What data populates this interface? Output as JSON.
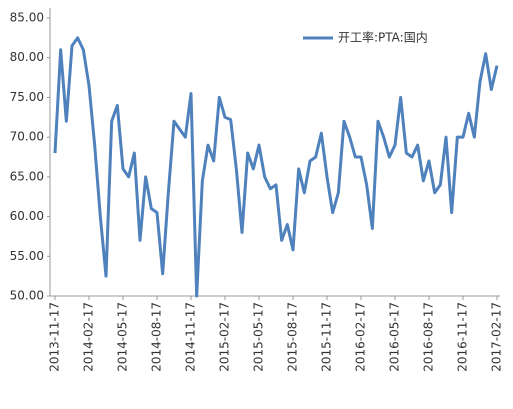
{
  "chart_data": {
    "type": "line",
    "categories": [
      "2013-11-17",
      null,
      null,
      null,
      null,
      null,
      "2014-02-17",
      null,
      null,
      null,
      null,
      null,
      "2014-05-17",
      null,
      null,
      null,
      null,
      null,
      "2014-08-17",
      null,
      null,
      null,
      null,
      null,
      "2014-11-17",
      null,
      null,
      null,
      null,
      null,
      "2015-02-17",
      null,
      null,
      null,
      null,
      null,
      "2015-05-17",
      null,
      null,
      null,
      null,
      null,
      "2015-08-17",
      null,
      null,
      null,
      null,
      null,
      "2015-11-17",
      null,
      null,
      null,
      null,
      null,
      "2016-02-17",
      null,
      null,
      null,
      null,
      null,
      "2016-05-17",
      null,
      null,
      null,
      null,
      null,
      "2016-08-17",
      null,
      null,
      null,
      null,
      null,
      "2016-11-17",
      null,
      null,
      null,
      null,
      null,
      "2017-02-17"
    ],
    "series": [
      {
        "name": "开工率:PTA:国内",
        "color": "#4f81bd",
        "values": [
          68,
          81,
          72,
          81.5,
          82.5,
          81,
          76.5,
          69,
          60,
          52.5,
          72,
          74,
          66,
          65,
          68,
          57,
          65,
          61,
          60.5,
          52.8,
          63,
          72,
          71,
          70,
          75.5,
          50,
          64.5,
          69,
          67,
          75,
          72.5,
          72.2,
          66,
          58,
          68,
          66,
          69,
          65,
          63.5,
          64,
          57,
          59,
          55.8,
          66,
          63,
          67,
          67.5,
          70.5,
          65,
          60.5,
          63,
          72,
          70,
          67.5,
          67.5,
          64,
          58.5,
          72,
          70,
          67.5,
          69,
          75,
          68,
          67.5,
          69,
          64.5,
          67,
          63,
          64,
          70,
          60.5,
          70,
          70,
          73,
          70,
          77,
          80.5,
          76,
          79
        ]
      }
    ],
    "ylim": [
      50,
      85
    ],
    "yticks": [
      {
        "value": 50,
        "label": "50.00"
      },
      {
        "value": 55,
        "label": "55.00"
      },
      {
        "value": 60,
        "label": "60.00"
      },
      {
        "value": 65,
        "label": "65.00"
      },
      {
        "value": 70,
        "label": "70.00"
      },
      {
        "value": 75,
        "label": "75.00"
      },
      {
        "value": 80,
        "label": "80.00"
      },
      {
        "value": 85,
        "label": "85.00"
      }
    ],
    "grid": false,
    "legend": "top-right"
  }
}
